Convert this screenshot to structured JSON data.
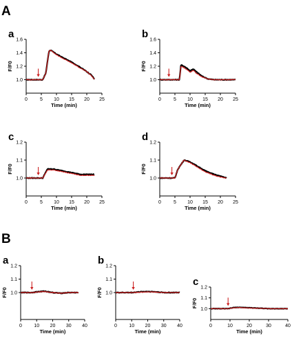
{
  "sections": [
    {
      "label": "A"
    },
    {
      "label": "B"
    }
  ],
  "colors": {
    "trace_black": "#000000",
    "trace_red": "#cc2222",
    "arrow": "#cc2222",
    "axis": "#000000"
  },
  "chart_data": [
    {
      "type": "line",
      "section": "A",
      "panel_label": "a",
      "xlabel": "Time (min)",
      "ylabel": "F/F0",
      "xlim": [
        0,
        25
      ],
      "ylim": [
        0.8,
        1.6
      ],
      "xticks": [
        0,
        5,
        10,
        15,
        20,
        25
      ],
      "yticks": [
        1.0,
        1.2,
        1.4,
        1.6
      ],
      "arrow_x": 4,
      "series": [
        {
          "color": "#000000",
          "x": [
            0,
            4,
            5.5,
            6.5,
            7.5,
            8,
            10,
            12,
            15,
            18,
            20,
            21.5,
            22.5
          ],
          "y": [
            1.0,
            1.0,
            1.0,
            1.1,
            1.42,
            1.44,
            1.38,
            1.33,
            1.26,
            1.18,
            1.12,
            1.07,
            1.01
          ]
        },
        {
          "color": "#cc2222",
          "x": [
            0,
            4,
            5.5,
            6.5,
            7.5,
            8,
            10,
            12,
            15,
            18,
            20,
            21.5,
            22.5
          ],
          "y": [
            1.0,
            1.0,
            1.0,
            1.1,
            1.42,
            1.44,
            1.37,
            1.32,
            1.25,
            1.17,
            1.12,
            1.06,
            1.01
          ]
        }
      ]
    },
    {
      "type": "line",
      "section": "A",
      "panel_label": "b",
      "xlabel": "Time (min)",
      "ylabel": "F/F0",
      "xlim": [
        0,
        25
      ],
      "ylim": [
        0.8,
        1.6
      ],
      "xticks": [
        0,
        5,
        10,
        15,
        20,
        25
      ],
      "yticks": [
        1.0,
        1.2,
        1.4,
        1.6
      ],
      "arrow_x": 3,
      "series": [
        {
          "color": "#000000",
          "x": [
            0,
            5,
            6.5,
            7,
            8,
            9,
            10,
            11,
            12,
            14,
            16,
            18,
            25
          ],
          "y": [
            1.0,
            1.0,
            1.0,
            1.22,
            1.2,
            1.17,
            1.13,
            1.16,
            1.12,
            1.05,
            1.01,
            1.0,
            1.0
          ]
        },
        {
          "color": "#cc2222",
          "x": [
            0,
            5,
            6.5,
            7,
            8,
            9,
            10,
            11,
            12,
            14,
            16,
            18,
            25
          ],
          "y": [
            1.0,
            1.0,
            1.0,
            1.2,
            1.18,
            1.15,
            1.11,
            1.14,
            1.1,
            1.04,
            1.01,
            1.0,
            1.0
          ]
        }
      ]
    },
    {
      "type": "line",
      "section": "A",
      "panel_label": "c",
      "xlabel": "Time (min)",
      "ylabel": "F/F0",
      "xlim": [
        0,
        25
      ],
      "ylim": [
        0.9,
        1.2
      ],
      "xticks": [
        0,
        5,
        10,
        15,
        20,
        25
      ],
      "yticks": [
        1.0,
        1.1,
        1.2
      ],
      "arrow_x": 4,
      "series": [
        {
          "color": "#000000",
          "x": [
            0,
            4,
            5.5,
            7,
            9,
            12,
            15,
            18,
            20,
            22.5
          ],
          "y": [
            1.0,
            1.0,
            1.0,
            1.05,
            1.05,
            1.04,
            1.03,
            1.02,
            1.02,
            1.02
          ]
        },
        {
          "color": "#cc2222",
          "x": [
            0,
            4,
            5.5,
            7,
            9,
            12,
            15,
            18,
            20,
            22.5
          ],
          "y": [
            1.0,
            1.0,
            1.0,
            1.045,
            1.045,
            1.035,
            1.025,
            1.015,
            1.015,
            1.015
          ]
        }
      ]
    },
    {
      "type": "line",
      "section": "A",
      "panel_label": "d",
      "xlabel": "Time (min)",
      "ylabel": "F/F0",
      "xlim": [
        0,
        25
      ],
      "ylim": [
        0.9,
        1.2
      ],
      "xticks": [
        0,
        5,
        10,
        15,
        20,
        25
      ],
      "yticks": [
        1.0,
        1.1,
        1.2
      ],
      "arrow_x": 4,
      "series": [
        {
          "color": "#000000",
          "x": [
            0,
            4,
            5,
            6,
            8,
            10,
            12,
            15,
            18,
            20,
            22
          ],
          "y": [
            1.0,
            1.0,
            1.0,
            1.05,
            1.1,
            1.09,
            1.07,
            1.04,
            1.02,
            1.01,
            1.0
          ]
        },
        {
          "color": "#cc2222",
          "x": [
            0,
            4,
            5,
            6,
            8,
            10,
            12,
            15,
            18,
            20,
            22
          ],
          "y": [
            1.0,
            1.0,
            1.0,
            1.05,
            1.1,
            1.085,
            1.065,
            1.035,
            1.015,
            1.005,
            1.0
          ]
        }
      ]
    },
    {
      "type": "line",
      "section": "B",
      "panel_label": "a",
      "xlabel": "Time (min)",
      "ylabel": "F/F0",
      "xlim": [
        0,
        40
      ],
      "ylim": [
        0.8,
        1.2
      ],
      "xticks": [
        0,
        10,
        20,
        30,
        40
      ],
      "yticks": [
        1.0,
        1.1,
        1.2
      ],
      "arrow_x": 7,
      "series": [
        {
          "color": "#000000",
          "x": [
            0,
            7,
            10,
            15,
            20,
            25,
            30,
            36
          ],
          "y": [
            1.0,
            1.0,
            1.005,
            1.01,
            1.0,
            0.995,
            1.0,
            1.0
          ]
        },
        {
          "color": "#cc2222",
          "x": [
            0,
            7,
            10,
            15,
            20,
            25,
            30,
            36
          ],
          "y": [
            1.0,
            1.0,
            1.003,
            1.008,
            1.0,
            0.995,
            1.0,
            1.0
          ]
        }
      ]
    },
    {
      "type": "line",
      "section": "B",
      "panel_label": "b",
      "xlabel": "Time (min)",
      "ylabel": "F/F0",
      "xlim": [
        0,
        40
      ],
      "ylim": [
        0.8,
        1.2
      ],
      "xticks": [
        0,
        10,
        20,
        30,
        40
      ],
      "yticks": [
        1.0,
        1.1,
        1.2
      ],
      "arrow_x": 11,
      "series": [
        {
          "color": "#000000",
          "x": [
            0,
            10,
            15,
            20,
            25,
            30,
            35,
            40
          ],
          "y": [
            1.0,
            1.0,
            1.005,
            1.008,
            1.005,
            1.0,
            1.0,
            1.0
          ]
        },
        {
          "color": "#cc2222",
          "x": [
            0,
            10,
            15,
            20,
            25,
            30,
            35,
            40
          ],
          "y": [
            1.0,
            1.0,
            1.003,
            1.005,
            1.003,
            1.0,
            1.0,
            1.0
          ]
        }
      ]
    },
    {
      "type": "line",
      "section": "B",
      "panel_label": "c",
      "xlabel": "Time (min)",
      "ylabel": "F/F0",
      "xlim": [
        0,
        40
      ],
      "ylim": [
        0.9,
        1.2
      ],
      "xticks": [
        0,
        10,
        20,
        30,
        40
      ],
      "yticks": [
        1.0,
        1.1,
        1.2
      ],
      "arrow_x": 9,
      "series": [
        {
          "color": "#000000",
          "x": [
            0,
            9,
            12,
            15,
            20,
            25,
            30,
            40
          ],
          "y": [
            1.0,
            1.0,
            1.01,
            1.012,
            1.008,
            1.005,
            1.0,
            1.0
          ]
        },
        {
          "color": "#cc2222",
          "x": [
            0,
            9,
            12,
            15,
            20,
            25,
            30,
            40
          ],
          "y": [
            1.0,
            1.0,
            1.008,
            1.01,
            1.006,
            1.004,
            1.0,
            1.0
          ]
        }
      ]
    }
  ]
}
